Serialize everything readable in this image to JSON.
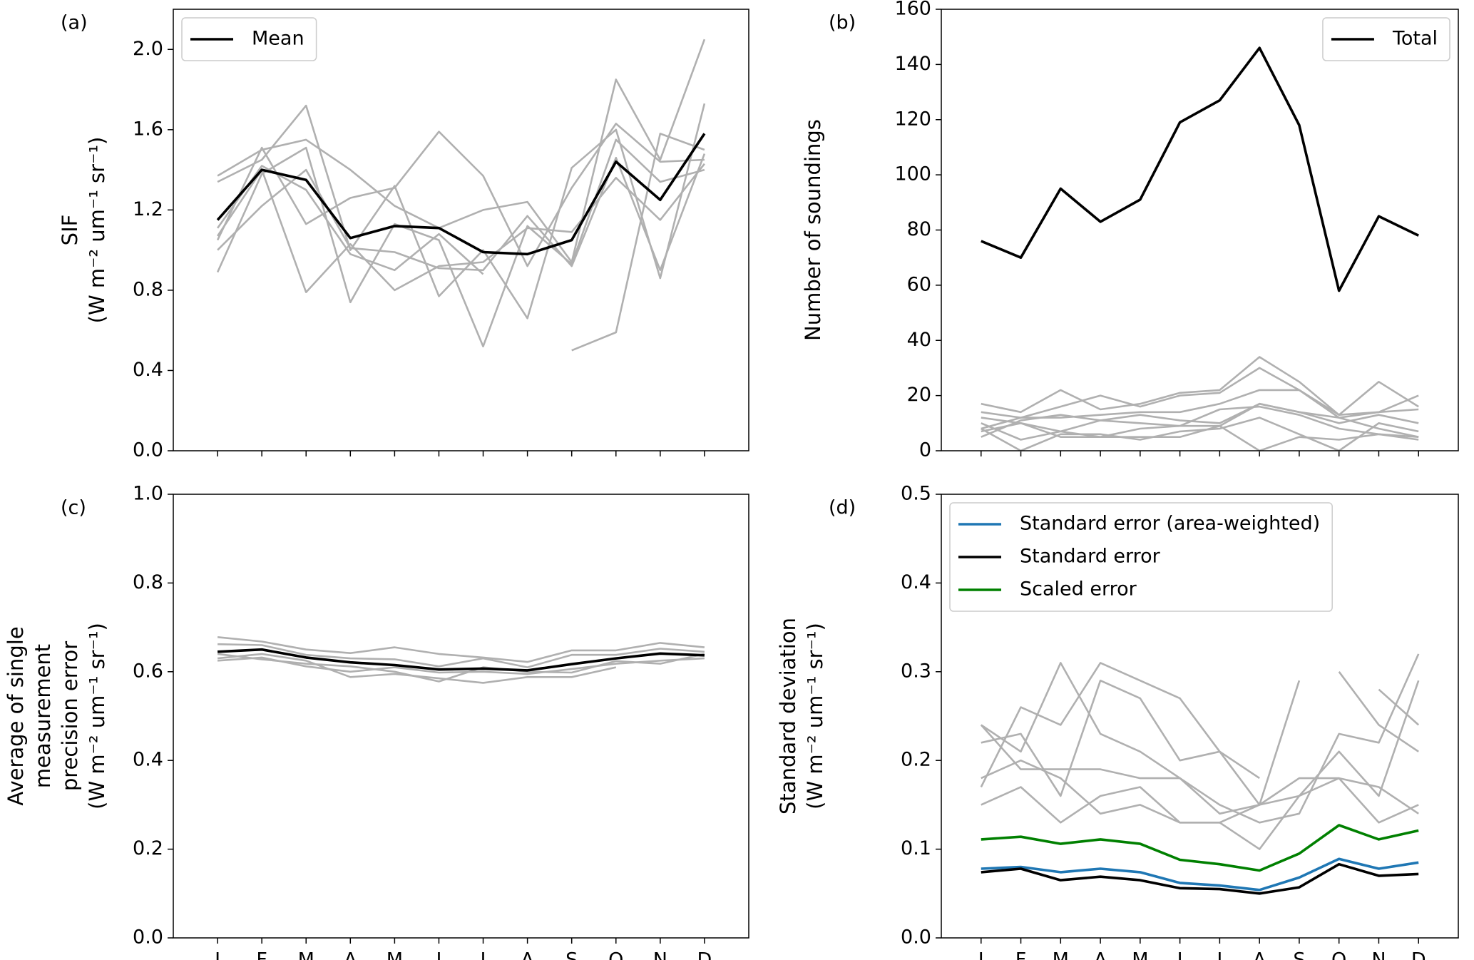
{
  "chart_data": [
    {
      "type": "line",
      "panel_label": "(a)",
      "ylabel": [
        "SIF",
        "(W m⁻² um⁻¹ sr⁻¹)"
      ],
      "categories": [
        null,
        null,
        null,
        null,
        null,
        null,
        null,
        null,
        null,
        null,
        null,
        null
      ],
      "ylim": [
        0,
        2.2
      ],
      "yticks": [
        {
          "value": 0,
          "label": "0.0"
        },
        0.4,
        0.8,
        1.2,
        1.6,
        {
          "value": 2,
          "label": "2.0"
        }
      ],
      "legend": "upper left",
      "series": [
        {
          "color": "#b0b0b0",
          "values": [
            1.37,
            1.5,
            1.55,
            1.4,
            1.22,
            1.11,
            1.2,
            1.24,
            0.94,
            1.85,
            1.45,
            2.05
          ]
        },
        {
          "color": "#b0b0b0",
          "values": [
            1.34,
            1.45,
            1.72,
            1.0,
            1.32,
            0.77,
            1.0,
            0.66,
            1.41,
            1.6,
            0.86,
            1.73
          ]
        },
        {
          "color": "#b0b0b0",
          "values": [
            1.05,
            1.51,
            1.13,
            1.26,
            1.31,
            1.59,
            1.37,
            0.92,
            1.31,
            1.63,
            1.44,
            1.45
          ]
        },
        {
          "color": "#b0b0b0",
          "values": [
            0.89,
            1.38,
            1.51,
            0.74,
            1.13,
            1.05,
            0.52,
            1.12,
            0.93,
            1.55,
            1.34,
            1.4
          ]
        },
        {
          "color": "#b0b0b0",
          "values": [
            1.0,
            1.22,
            1.4,
            1.01,
            0.99,
            0.91,
            0.9,
            1.17,
            0.92,
            1.46,
            0.9,
            1.48
          ]
        },
        {
          "color": "#b0b0b0",
          "values": [
            1.07,
            1.4,
            0.79,
            1.03,
            0.8,
            0.92,
            0.94,
            1.11,
            1.09,
            1.36,
            1.15,
            1.43
          ]
        },
        {
          "color": "#b0b0b0",
          "values": [
            1.11,
            1.42,
            1.3,
            0.98,
            0.9,
            1.08,
            0.88,
            null,
            0.5,
            0.59,
            1.58,
            1.5
          ]
        },
        {
          "name": "Mean",
          "color": "#000000",
          "values": [
            1.15,
            1.4,
            1.35,
            1.06,
            1.12,
            1.11,
            0.99,
            0.98,
            1.05,
            1.44,
            1.25,
            1.58
          ]
        }
      ]
    },
    {
      "type": "line",
      "panel_label": "(b)",
      "ylabel": [
        "Number of soundings"
      ],
      "categories": [
        null,
        null,
        null,
        null,
        null,
        null,
        null,
        null,
        null,
        null,
        null,
        null
      ],
      "ylim": [
        0,
        160
      ],
      "yticks": [
        0,
        20,
        40,
        60,
        80,
        100,
        120,
        140,
        160
      ],
      "legend": "upper right",
      "series": [
        {
          "color": "#b0b0b0",
          "values": [
            17,
            14,
            22,
            15,
            17,
            21,
            22,
            34,
            25,
            13,
            25,
            16
          ]
        },
        {
          "color": "#b0b0b0",
          "values": [
            14,
            12,
            16,
            20,
            16,
            20,
            21,
            30,
            22,
            13,
            14,
            20
          ]
        },
        {
          "color": "#b0b0b0",
          "values": [
            8,
            12,
            12,
            13,
            14,
            14,
            17,
            22,
            22,
            12,
            14,
            15
          ]
        },
        {
          "color": "#b0b0b0",
          "values": [
            12,
            10,
            7,
            11,
            13,
            11,
            10,
            17,
            14,
            10,
            13,
            10
          ]
        },
        {
          "color": "#b0b0b0",
          "values": [
            7,
            10,
            5,
            5,
            8,
            9,
            9,
            17,
            14,
            12,
            8,
            5
          ]
        },
        {
          "color": "#b0b0b0",
          "values": [
            8,
            0,
            6,
            6,
            4,
            7,
            8,
            12,
            6,
            0,
            10,
            7
          ]
        },
        {
          "color": "#b0b0b0",
          "values": [
            5,
            11,
            13,
            11,
            10,
            9,
            15,
            16,
            13,
            8,
            6,
            4
          ]
        },
        {
          "color": "#b0b0b0",
          "values": [
            10,
            4,
            7,
            5,
            5,
            5,
            9,
            0,
            5,
            4,
            6,
            5
          ]
        },
        {
          "name": "Total",
          "color": "#000000",
          "values": [
            76,
            70,
            95,
            83,
            91,
            119,
            127,
            146,
            118,
            58,
            85,
            78
          ]
        }
      ]
    },
    {
      "type": "line",
      "panel_label": "(c)",
      "ylabel": [
        "Average of single",
        "measurement",
        "precision error",
        "(W m⁻² um⁻¹ sr⁻¹)"
      ],
      "categories": [
        "J",
        "F",
        "M",
        "A",
        "M",
        "J",
        "J",
        "A",
        "S",
        "O",
        "N",
        "D"
      ],
      "ylim": [
        0,
        1
      ],
      "yticks": [
        {
          "value": 0,
          "label": "0.0"
        },
        0.2,
        0.4,
        0.6,
        0.8,
        {
          "value": 1,
          "label": "1.0"
        }
      ],
      "series": [
        {
          "color": "#b0b0b0",
          "values": [
            0.678,
            0.668,
            0.65,
            0.642,
            0.655,
            0.64,
            0.632,
            0.622,
            0.648,
            0.648,
            0.665,
            0.655
          ]
        },
        {
          "color": "#b0b0b0",
          "values": [
            0.662,
            0.66,
            0.638,
            0.63,
            0.628,
            0.612,
            0.63,
            0.61,
            0.638,
            0.638,
            0.652,
            0.645
          ]
        },
        {
          "color": "#b0b0b0",
          "values": [
            0.625,
            0.632,
            0.612,
            0.6,
            0.61,
            0.598,
            0.6,
            0.595,
            0.606,
            0.618,
            0.625,
            0.63
          ]
        },
        {
          "color": "#b0b0b0",
          "values": [
            0.63,
            0.64,
            0.625,
            0.588,
            0.595,
            0.585,
            0.575,
            0.588,
            0.588,
            0.61,
            null,
            0.632
          ]
        },
        {
          "color": "#b0b0b0",
          "values": [
            0.64,
            0.628,
            0.618,
            0.612,
            0.6,
            0.578,
            0.61,
            0.6,
            0.598,
            0.624,
            0.618,
            0.64
          ]
        },
        {
          "color": "#000000",
          "values": [
            0.645,
            0.65,
            0.632,
            0.621,
            0.615,
            0.605,
            0.607,
            0.603,
            0.617,
            0.63,
            0.641,
            0.637
          ]
        }
      ]
    },
    {
      "type": "line",
      "panel_label": "(d)",
      "ylabel": [
        "Standard deviation",
        "(W m⁻² um⁻¹ sr⁻¹)"
      ],
      "categories": [
        "J",
        "F",
        "M",
        "A",
        "M",
        "J",
        "J",
        "A",
        "S",
        "O",
        "N",
        "D"
      ],
      "ylim": [
        0,
        0.5
      ],
      "yticks": [
        {
          "value": 0,
          "label": "0.0"
        },
        0.1,
        0.2,
        0.3,
        0.4,
        0.5
      ],
      "legend": "upper left",
      "series": [
        {
          "color": "#b0b0b0",
          "values": [
            0.24,
            0.21,
            0.31,
            0.23,
            0.21,
            0.18,
            0.14,
            0.15,
            0.16,
            0.21,
            0.16,
            0.29
          ]
        },
        {
          "color": "#b0b0b0",
          "values": [
            0.17,
            0.26,
            0.24,
            0.31,
            0.29,
            0.27,
            0.21,
            0.15,
            0.29,
            null,
            0.28,
            0.24
          ]
        },
        {
          "color": "#b0b0b0",
          "values": [
            0.22,
            0.23,
            0.16,
            0.29,
            0.27,
            0.2,
            0.21,
            0.18,
            null,
            0.3,
            0.24,
            0.21
          ]
        },
        {
          "color": "#b0b0b0",
          "values": [
            0.24,
            0.19,
            0.19,
            0.19,
            0.18,
            0.18,
            0.15,
            0.13,
            0.14,
            0.23,
            0.22,
            0.32
          ]
        },
        {
          "color": "#b0b0b0",
          "values": [
            0.15,
            0.17,
            0.13,
            0.16,
            0.17,
            0.13,
            0.13,
            0.15,
            0.18,
            0.18,
            0.13,
            0.15
          ]
        },
        {
          "color": "#b0b0b0",
          "values": [
            0.18,
            0.2,
            0.18,
            0.14,
            0.15,
            0.13,
            0.13,
            0.1,
            0.16,
            0.18,
            0.17,
            0.14
          ]
        },
        {
          "name": "Standard error (area-weighted)",
          "color": "#1f77b4",
          "values": [
            0.078,
            0.08,
            0.074,
            0.078,
            0.074,
            0.062,
            0.059,
            0.054,
            0.068,
            0.089,
            0.078,
            0.085
          ]
        },
        {
          "name": "Standard error",
          "color": "#000000",
          "values": [
            0.074,
            0.078,
            0.065,
            0.069,
            0.065,
            0.056,
            0.055,
            0.05,
            0.057,
            0.083,
            0.07,
            0.072
          ]
        },
        {
          "name": "Scaled error",
          "color": "#008000",
          "values": [
            0.111,
            0.114,
            0.106,
            0.111,
            0.106,
            0.088,
            0.083,
            0.076,
            0.095,
            0.127,
            0.111,
            0.121
          ]
        }
      ]
    }
  ]
}
